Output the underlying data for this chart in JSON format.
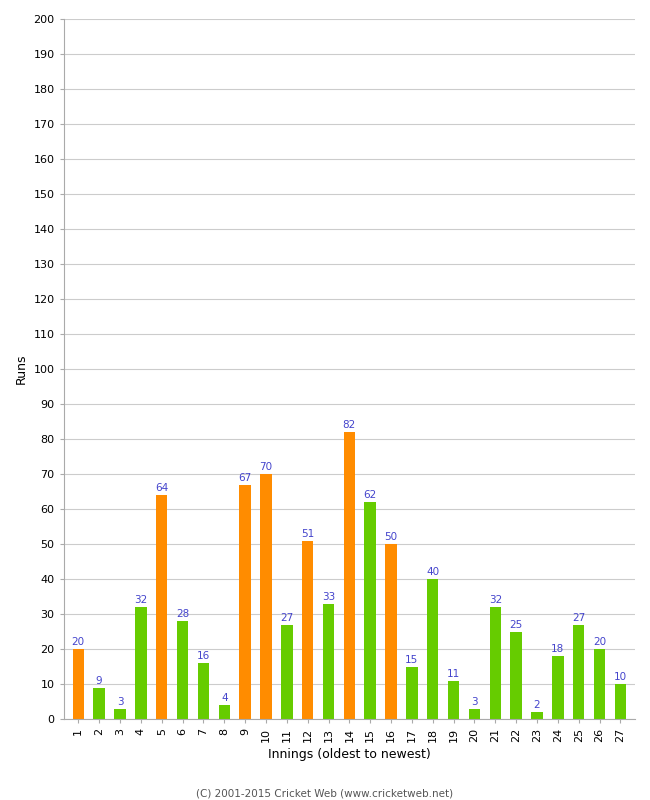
{
  "title": "",
  "xlabel": "Innings (oldest to newest)",
  "ylabel": "Runs",
  "ylim": [
    0,
    200
  ],
  "yticks": [
    0,
    10,
    20,
    30,
    40,
    50,
    60,
    70,
    80,
    90,
    100,
    110,
    120,
    130,
    140,
    150,
    160,
    170,
    180,
    190,
    200
  ],
  "innings": [
    1,
    2,
    3,
    4,
    5,
    6,
    7,
    8,
    9,
    10,
    11,
    12,
    13,
    14,
    15,
    16,
    17,
    18,
    19,
    20,
    21,
    22,
    23,
    24,
    25,
    26,
    27
  ],
  "values": [
    20,
    9,
    3,
    32,
    64,
    28,
    16,
    4,
    67,
    70,
    27,
    51,
    33,
    82,
    62,
    50,
    15,
    40,
    11,
    3,
    32,
    25,
    2,
    18,
    27,
    20,
    10
  ],
  "colors": [
    "#ff8c00",
    "#66cc00",
    "#66cc00",
    "#66cc00",
    "#ff8c00",
    "#66cc00",
    "#66cc00",
    "#66cc00",
    "#ff8c00",
    "#ff8c00",
    "#66cc00",
    "#ff8c00",
    "#66cc00",
    "#ff8c00",
    "#66cc00",
    "#ff8c00",
    "#66cc00",
    "#66cc00",
    "#66cc00",
    "#66cc00",
    "#66cc00",
    "#66cc00",
    "#66cc00",
    "#66cc00",
    "#66cc00",
    "#66cc00",
    "#66cc00"
  ],
  "label_color": "#4444cc",
  "background_color": "#ffffff",
  "footer": "(C) 2001-2015 Cricket Web (www.cricketweb.net)",
  "axis_fontsize": 9,
  "tick_fontsize": 8,
  "label_fontsize": 7.5,
  "bar_width": 0.55
}
